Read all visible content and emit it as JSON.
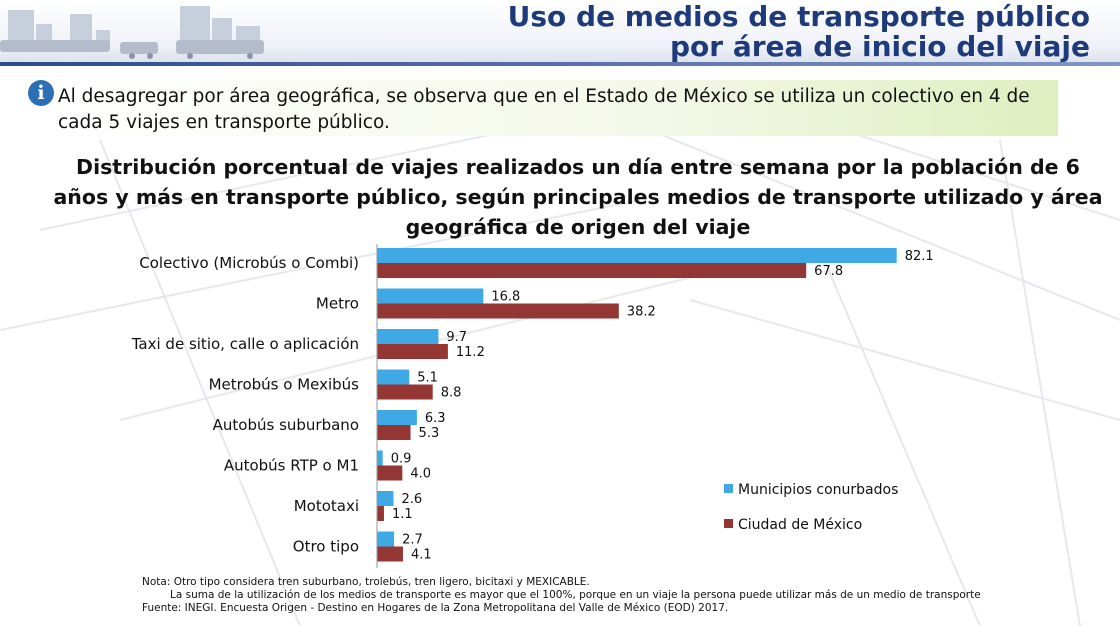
{
  "header": {
    "title_line1": "Uso de medios de transporte público",
    "title_line2": "por área de inicio del viaje"
  },
  "info": {
    "icon": "info-icon",
    "text": "Al desagregar por área geográfica, se observa que en el Estado de México se utiliza un colectivo en 4 de cada 5 viajes en transporte público."
  },
  "colors": {
    "title": "#1f3a7a",
    "series1": "#3fa9e6",
    "series2": "#943634"
  },
  "chart_data": {
    "type": "bar",
    "orientation": "horizontal",
    "title": "Distribución porcentual de viajes realizados un día entre semana por la población de 6 años y más en transporte público, según principales medios de transporte utilizado y área geográfica de origen del viaje",
    "categories": [
      "Colectivo (Microbús o Combi)",
      "Metro",
      "Taxi de sitio, calle o aplicación",
      "Metrobús o Mexibús",
      "Autobús suburbano",
      "Autobús RTP o M1",
      "Mototaxi",
      "Otro tipo"
    ],
    "series": [
      {
        "name": "Municipios conurbados",
        "values": [
          82.1,
          16.8,
          9.7,
          5.1,
          6.3,
          0.9,
          2.6,
          2.7
        ],
        "labels": [
          "82.1",
          "16.8",
          "9.7",
          "5.1",
          "6.3",
          "0.9",
          "2.6",
          "2.7"
        ]
      },
      {
        "name": "Ciudad de México",
        "values": [
          67.8,
          38.2,
          11.2,
          8.8,
          5.3,
          4.0,
          1.1,
          4.1
        ],
        "labels": [
          "67.8",
          "38.2",
          "11.2",
          "8.8",
          "5.3",
          "4.0",
          "1.1",
          "4.1"
        ]
      }
    ],
    "xlim": [
      0,
      85
    ],
    "grid": false,
    "legend_position": "right"
  },
  "notes": {
    "line1": "Nota: Otro tipo considera tren suburbano, trolebús, tren ligero, bicitaxi y MEXICABLE.",
    "line2": "La suma de la utilización de los medios de transporte es mayor que el 100%, porque en un viaje la persona puede utilizar más de un medio de transporte",
    "line3": "Fuente: INEGI. Encuesta Origen - Destino en Hogares de la Zona Metropolitana del Valle de México (EOD) 2017."
  }
}
